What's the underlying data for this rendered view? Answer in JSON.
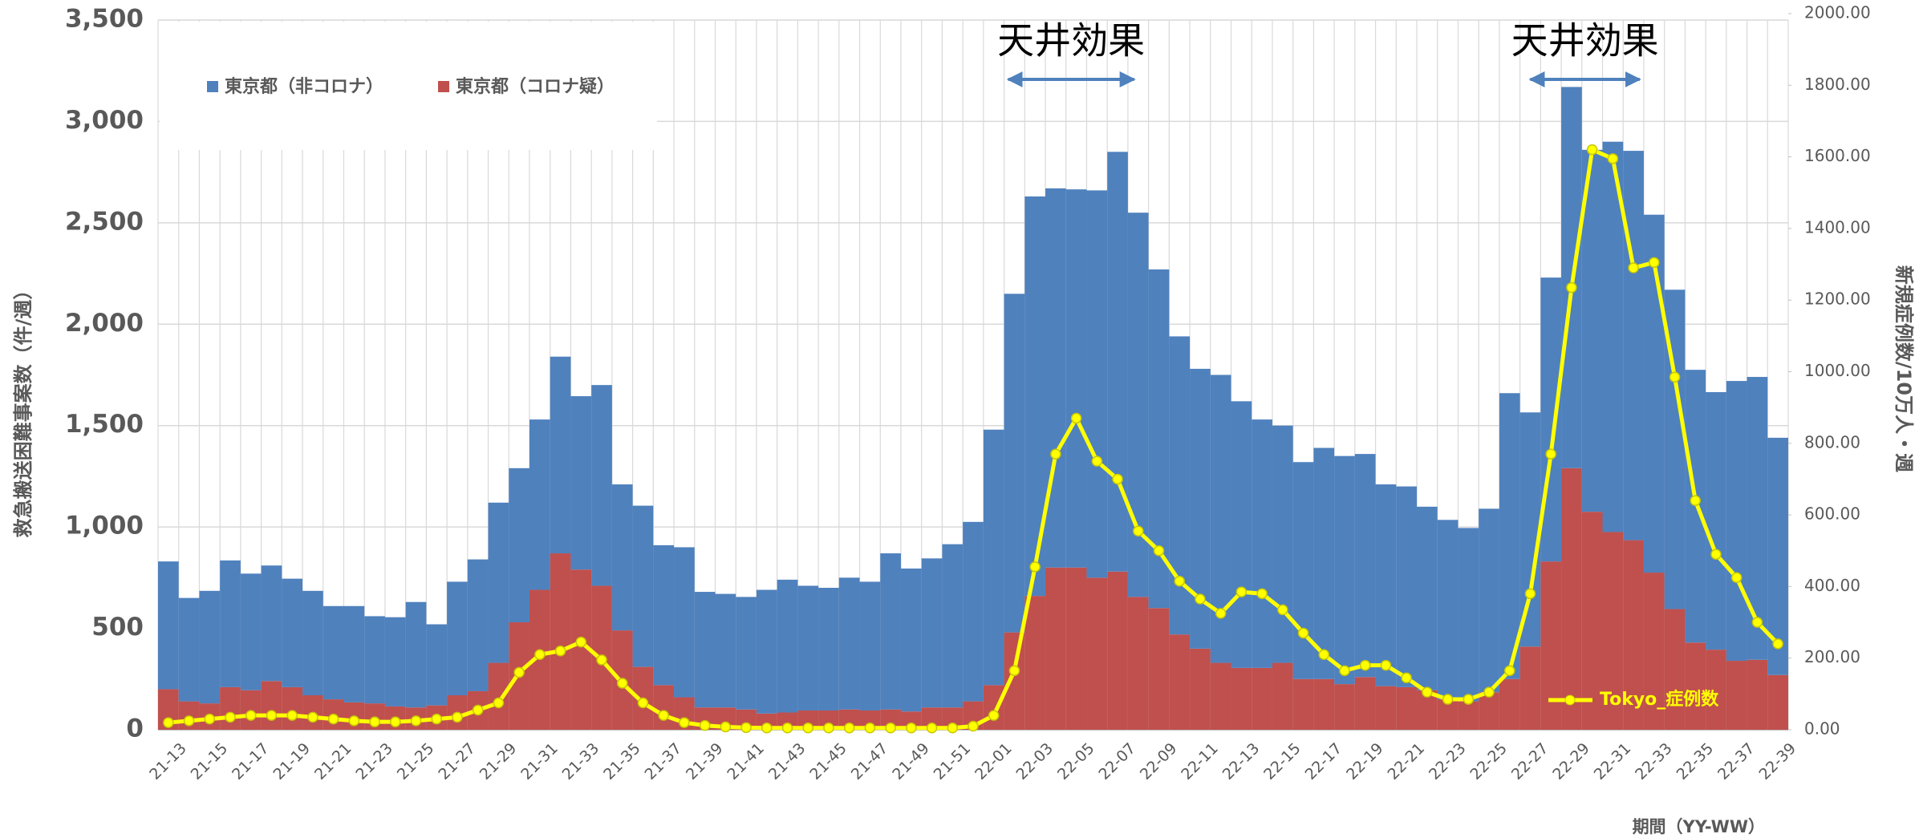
{
  "chart_data": {
    "type": "bar",
    "y_label": "救急搬送困難事案数（件/週）",
    "y2_label": "新規症例数/10万人・週",
    "x_label": "期間（YY-WW）",
    "categories": [
      "21-13",
      null,
      "21-15",
      null,
      "21-17",
      null,
      "21-19",
      null,
      "21-21",
      null,
      "21-23",
      null,
      "21-25",
      null,
      "21-27",
      null,
      "21-29",
      null,
      "21-31",
      null,
      "21-33",
      null,
      "21-35",
      null,
      "21-37",
      null,
      "21-39",
      null,
      "21-41",
      null,
      "21-43",
      null,
      "21-45",
      null,
      "21-47",
      null,
      "21-49",
      null,
      "21-51",
      null,
      "22-01",
      null,
      "22-03",
      null,
      "22-05",
      null,
      "22-07",
      null,
      "22-09",
      null,
      "22-11",
      null,
      "22-13",
      null,
      "22-15",
      null,
      "22-17",
      null,
      "22-19",
      null,
      "22-21",
      null,
      "22-23",
      null,
      "22-25",
      null,
      "22-27",
      null,
      "22-29",
      null,
      "22-31",
      null,
      "22-33",
      null,
      "22-35",
      null,
      "22-37",
      null,
      "22-39"
    ],
    "series": [
      {
        "name": "東京都（非コロナ）",
        "color": "#4f81bd",
        "values": [
          630,
          510,
          555,
          625,
          575,
          570,
          535,
          515,
          460,
          475,
          430,
          440,
          520,
          400,
          560,
          650,
          790,
          760,
          840,
          970,
          855,
          990,
          720,
          795,
          690,
          740,
          570,
          560,
          555,
          610,
          655,
          615,
          605,
          650,
          635,
          770,
          705,
          735,
          805,
          885,
          1260,
          1670,
          1970,
          1870,
          1865,
          1910,
          2070,
          1895,
          1670,
          1470,
          1380,
          1420,
          1315,
          1225,
          1170,
          1070,
          1140,
          1125,
          1100,
          995,
          990,
          905,
          885,
          855,
          905,
          1410,
          1155,
          1400,
          1880,
          1785,
          1925,
          1920,
          1765,
          1575,
          1345,
          1270,
          1380,
          1395,
          1170
        ]
      },
      {
        "name": "東京都（コロナ疑）",
        "color": "#c0504d",
        "values": [
          200,
          140,
          130,
          210,
          195,
          240,
          210,
          170,
          150,
          135,
          130,
          115,
          110,
          120,
          170,
          190,
          330,
          530,
          690,
          870,
          790,
          710,
          490,
          310,
          220,
          160,
          110,
          110,
          100,
          80,
          85,
          95,
          95,
          100,
          95,
          100,
          90,
          110,
          110,
          140,
          220,
          480,
          660,
          800,
          800,
          750,
          780,
          655,
          600,
          470,
          400,
          330,
          305,
          305,
          330,
          250,
          250,
          225,
          260,
          215,
          210,
          195,
          150,
          140,
          185,
          250,
          410,
          830,
          1290,
          1075,
          975,
          935,
          775,
          595,
          430,
          395,
          340,
          345,
          270
        ]
      },
      {
        "name": "Tokyo_症例数",
        "color": "#ffff00",
        "type": "line",
        "axis": "y2",
        "values": [
          20,
          25,
          30,
          35,
          40,
          40,
          40,
          35,
          30,
          25,
          22,
          22,
          25,
          30,
          35,
          55,
          75,
          160,
          210,
          220,
          245,
          195,
          130,
          75,
          40,
          20,
          12,
          8,
          6,
          5,
          5,
          5,
          5,
          5,
          5,
          5,
          5,
          5,
          5,
          10,
          40,
          165,
          455,
          770,
          870,
          750,
          700,
          555,
          500,
          415,
          365,
          325,
          385,
          380,
          335,
          270,
          210,
          165,
          180,
          180,
          145,
          105,
          85,
          85,
          105,
          165,
          380,
          770,
          1235,
          1620,
          1595,
          1290,
          1305,
          985,
          640,
          490,
          425,
          300,
          240
        ]
      }
    ],
    "ylim": [
      0,
      3500
    ],
    "yticks": [
      0,
      500,
      {
        "value": 1000,
        "label": "1,000"
      },
      {
        "value": 1500,
        "label": "1,500"
      },
      {
        "value": 2000,
        "label": "2,000"
      },
      {
        "value": 2500,
        "label": "2,500"
      },
      {
        "value": 3000,
        "label": "3,000"
      },
      {
        "value": 3500,
        "label": "3,500"
      }
    ],
    "y2lim": [
      0,
      2000
    ],
    "y2ticks": [
      {
        "value": 0,
        "label": "0.00"
      },
      {
        "value": 200,
        "label": "200.00"
      },
      {
        "value": 400,
        "label": "400.00"
      },
      {
        "value": 600,
        "label": "600.00"
      },
      {
        "value": 800,
        "label": "800.00"
      },
      {
        "value": 1000,
        "label": "1000.00"
      },
      {
        "value": 1200,
        "label": "1200.00"
      },
      {
        "value": 1400,
        "label": "1400.00"
      },
      {
        "value": 1600,
        "label": "1600.00"
      },
      {
        "value": 1800,
        "label": "1800.00"
      },
      {
        "value": 2000,
        "label": "2000.00"
      }
    ],
    "grid": true,
    "legend": "top-left",
    "annotations": [
      {
        "text": "天井効果"
      },
      {
        "text": "天井効果"
      }
    ]
  }
}
